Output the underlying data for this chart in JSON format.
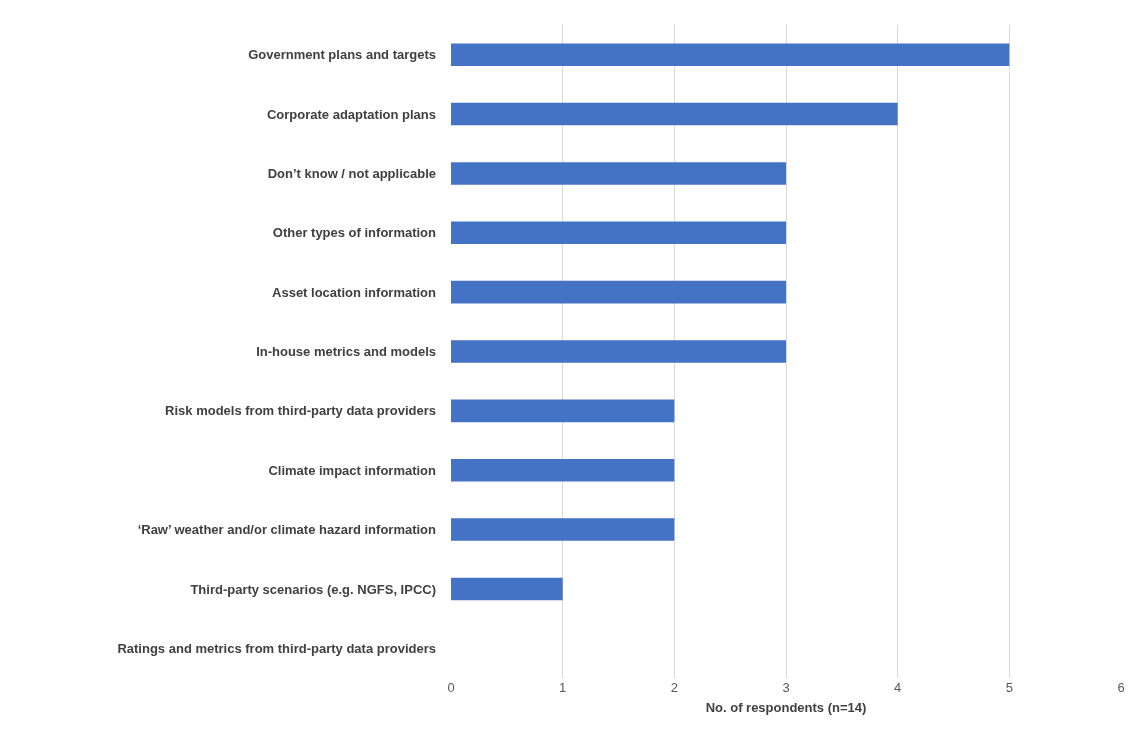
{
  "chart_data": {
    "type": "bar",
    "orientation": "horizontal",
    "xlabel": "No. of respondents (n=14)",
    "categories": [
      "Government plans and targets",
      "Corporate adaptation plans",
      "Don’t know / not applicable",
      "Other types of information",
      "Asset location information",
      "In-house metrics and models",
      "Risk models from third-party data providers",
      "Climate impact information",
      "‘Raw’ weather and/or climate hazard information",
      "Third-party scenarios (e.g. NGFS, IPCC)",
      "Ratings and metrics from third-party data providers"
    ],
    "values": [
      5,
      4,
      3,
      3,
      3,
      3,
      2,
      2,
      2,
      1,
      0
    ],
    "color": "#4472c4",
    "xlim": [
      0,
      6
    ],
    "xticks": [
      0,
      1,
      2,
      3,
      4,
      5,
      6
    ],
    "grid": "x",
    "legend": false
  }
}
